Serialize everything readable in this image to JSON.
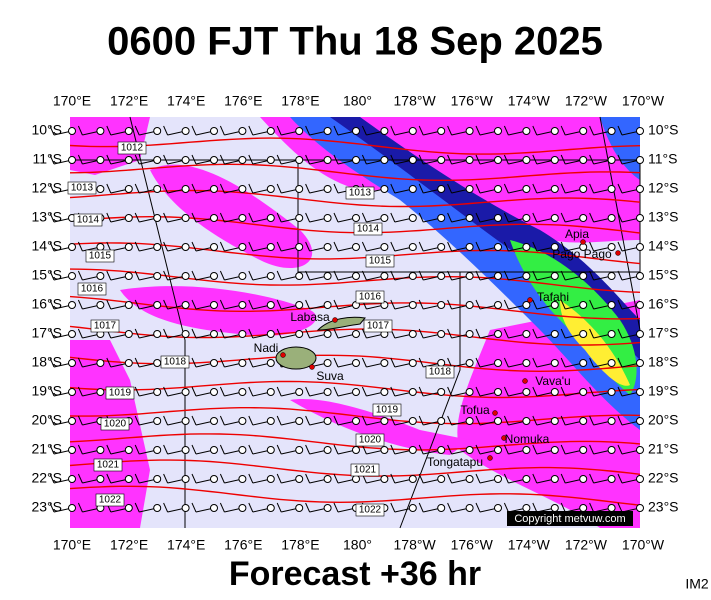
{
  "header": {
    "title": "0600 FJT Thu 18 Sep 2025"
  },
  "map": {
    "lon_labels": [
      "170°E",
      "172°E",
      "174°E",
      "176°E",
      "178°E",
      "180°",
      "178°W",
      "176°W",
      "174°W",
      "172°W",
      "170°W"
    ],
    "lat_labels": [
      "10°S",
      "11°S",
      "12°S",
      "13°S",
      "14°S",
      "15°S",
      "16°S",
      "17°S",
      "18°S",
      "19°S",
      "20°S",
      "21°S",
      "22°S",
      "23°S"
    ],
    "places": [
      "Apia",
      "Pago Pago",
      "Tafahi",
      "Labasa",
      "Nadi",
      "Suva",
      "Vava'u",
      "Tofua",
      "Nomuka",
      "Tongatapu"
    ],
    "isobar_labels": [
      "1012",
      "1013",
      "1014",
      "1015",
      "1016",
      "1017",
      "1018",
      "1019",
      "1020",
      "1021",
      "1022",
      "1013",
      "1014",
      "1015",
      "1016",
      "1017",
      "1018",
      "1019",
      "1020",
      "1021",
      "1022"
    ],
    "copyright": "Copyright metvuw.com"
  },
  "footer": {
    "forecast": "Forecast +36 hr",
    "code": "IM2"
  }
}
